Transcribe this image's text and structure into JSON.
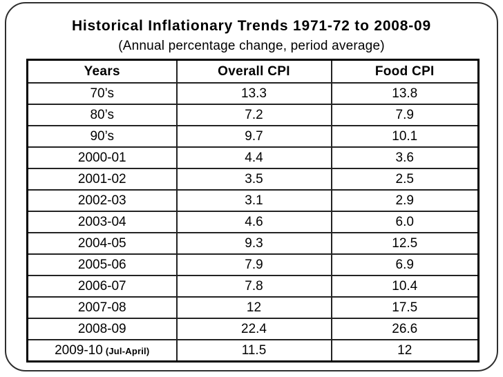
{
  "slide": {
    "title": "Historical Inflationary Trends 1971-72 to 2008-09",
    "subtitle": "(Annual percentage change, period average)"
  },
  "table": {
    "headers": [
      "Years",
      "Overall CPI",
      "Food CPI"
    ],
    "rows": [
      {
        "year": "70’s",
        "overall": "13.3",
        "food": "13.8"
      },
      {
        "year": "80’s",
        "overall": "7.2",
        "food": "7.9"
      },
      {
        "year": "90’s",
        "overall": "9.7",
        "food": "10.1"
      },
      {
        "year": "2000-01",
        "overall": "4.4",
        "food": "3.6"
      },
      {
        "year": "2001-02",
        "overall": "3.5",
        "food": "2.5"
      },
      {
        "year": "2002-03",
        "overall": "3.1",
        "food": "2.9"
      },
      {
        "year": "2003-04",
        "overall": "4.6",
        "food": "6.0"
      },
      {
        "year": "2004-05",
        "overall": "9.3",
        "food": "12.5"
      },
      {
        "year": "2005-06",
        "overall": "7.9",
        "food": "6.9"
      },
      {
        "year": "2006-07",
        "overall": "7.8",
        "food": "10.4"
      },
      {
        "year": "2007-08",
        "overall": "12",
        "food": "17.5"
      },
      {
        "year": "2008-09",
        "overall": "22.4",
        "food": "26.6"
      },
      {
        "year": "2009-10",
        "note": "(Jul-April)",
        "overall": "11.5",
        "food": "12"
      }
    ]
  },
  "chart_data": {
    "type": "table",
    "title": "Historical Inflationary Trends 1971-72 to 2008-09",
    "subtitle": "(Annual percentage change, period average)",
    "columns": [
      "Years",
      "Overall CPI",
      "Food CPI"
    ],
    "rows": [
      [
        "70's",
        13.3,
        13.8
      ],
      [
        "80's",
        7.2,
        7.9
      ],
      [
        "90's",
        9.7,
        10.1
      ],
      [
        "2000-01",
        4.4,
        3.6
      ],
      [
        "2001-02",
        3.5,
        2.5
      ],
      [
        "2002-03",
        3.1,
        2.9
      ],
      [
        "2003-04",
        4.6,
        6.0
      ],
      [
        "2004-05",
        9.3,
        12.5
      ],
      [
        "2005-06",
        7.9,
        6.9
      ],
      [
        "2006-07",
        7.8,
        10.4
      ],
      [
        "2007-08",
        12,
        17.5
      ],
      [
        "2008-09",
        22.4,
        26.6
      ],
      [
        "2009-10 (Jul-April)",
        11.5,
        12
      ]
    ],
    "text_color": "#000000",
    "border_color": "#000000",
    "background_color": "#ffffff"
  }
}
